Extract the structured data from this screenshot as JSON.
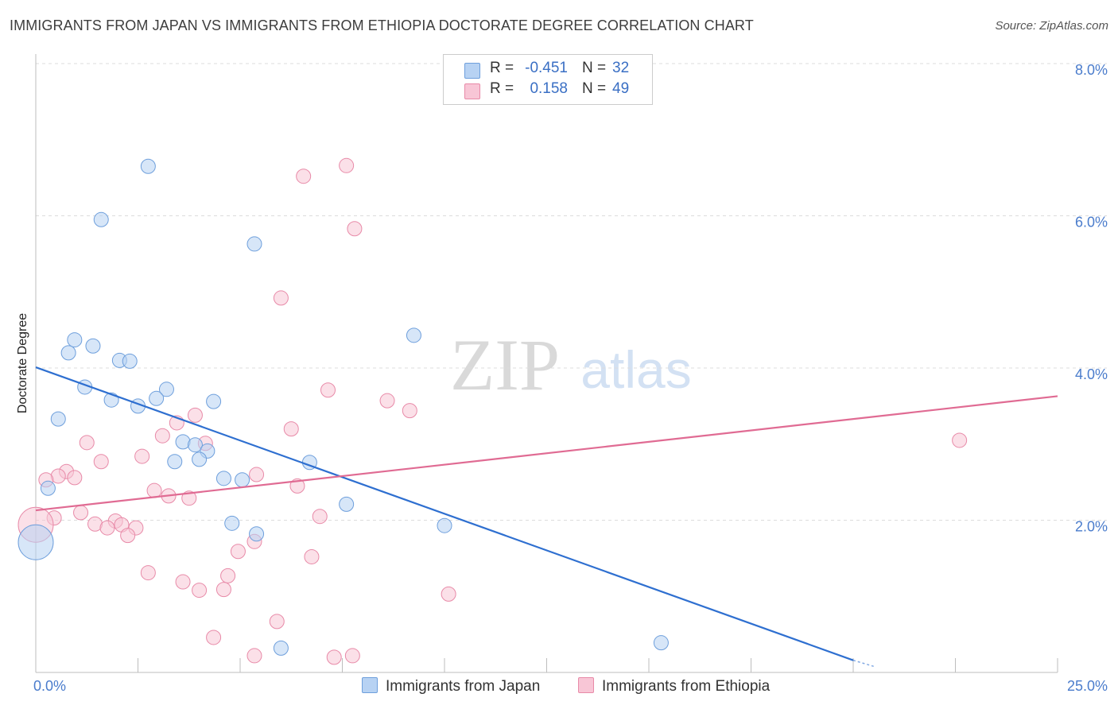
{
  "title": "IMMIGRANTS FROM JAPAN VS IMMIGRANTS FROM ETHIOPIA DOCTORATE DEGREE CORRELATION CHART",
  "source": "Source: ZipAtlas.com",
  "watermark": {
    "zip": "ZIP",
    "atlas": "atlas"
  },
  "legend": {
    "rows": [
      {
        "r_label": "R =",
        "r_value": "-0.451",
        "n_label": "N =",
        "n_value": "32"
      },
      {
        "r_label": "R =",
        "r_value": "0.158",
        "n_label": "N =",
        "n_value": "49"
      }
    ]
  },
  "colors": {
    "japan_fill": "#b7d2f3",
    "japan_stroke": "#6e9fdc",
    "japan_line": "#2e6fd0",
    "ethiopia_fill": "#f8c6d6",
    "ethiopia_stroke": "#e88aa8",
    "ethiopia_line": "#e06b93",
    "tick": "#4a7ccc",
    "grid": "#dcdcdc"
  },
  "chart_data": {
    "type": "scatter",
    "title": "IMMIGRANTS FROM JAPAN VS IMMIGRANTS FROM ETHIOPIA DOCTORATE DEGREE CORRELATION CHART",
    "xlabel": "",
    "ylabel": "Doctorate Degree",
    "xlim": [
      0,
      25
    ],
    "ylim": [
      0,
      8
    ],
    "y_ticks": [
      {
        "v": 2,
        "label": "2.0%"
      },
      {
        "v": 4,
        "label": "4.0%"
      },
      {
        "v": 6,
        "label": "6.0%"
      },
      {
        "v": 8,
        "label": "8.0%"
      }
    ],
    "x_tick_labels": [
      {
        "v": 0,
        "label": "0.0%"
      },
      {
        "v": 25,
        "label": "25.0%"
      }
    ],
    "x_minor_ticks": [
      2.5,
      5,
      7.5,
      10,
      12.5,
      15,
      17.5,
      20,
      22.5,
      25
    ],
    "grid": true,
    "legend_position": "top-center",
    "series": [
      {
        "name": "Immigrants from Japan",
        "r": -0.451,
        "n": 32,
        "trend": {
          "x": [
            0,
            20
          ],
          "y": [
            4.01,
            0.16
          ],
          "dash_to": [
            20.5,
            0.08
          ]
        },
        "points": [
          {
            "x": 2.75,
            "y": 6.65
          },
          {
            "x": 1.6,
            "y": 5.95
          },
          {
            "x": 5.35,
            "y": 5.63
          },
          {
            "x": 9.25,
            "y": 4.43
          },
          {
            "x": 0.95,
            "y": 4.37
          },
          {
            "x": 1.4,
            "y": 4.29
          },
          {
            "x": 0.8,
            "y": 4.2
          },
          {
            "x": 2.05,
            "y": 4.1
          },
          {
            "x": 2.3,
            "y": 4.09
          },
          {
            "x": 1.2,
            "y": 3.75
          },
          {
            "x": 3.2,
            "y": 3.72
          },
          {
            "x": 2.95,
            "y": 3.6
          },
          {
            "x": 1.85,
            "y": 3.58
          },
          {
            "x": 4.35,
            "y": 3.56
          },
          {
            "x": 2.5,
            "y": 3.5
          },
          {
            "x": 0.55,
            "y": 3.33
          },
          {
            "x": 3.6,
            "y": 3.03
          },
          {
            "x": 3.9,
            "y": 2.99
          },
          {
            "x": 4.2,
            "y": 2.91
          },
          {
            "x": 4.0,
            "y": 2.8
          },
          {
            "x": 3.4,
            "y": 2.77
          },
          {
            "x": 6.7,
            "y": 2.76
          },
          {
            "x": 4.6,
            "y": 2.55
          },
          {
            "x": 5.05,
            "y": 2.53
          },
          {
            "x": 0.3,
            "y": 2.42
          },
          {
            "x": 7.6,
            "y": 2.21
          },
          {
            "x": 4.8,
            "y": 1.96
          },
          {
            "x": 10.0,
            "y": 1.93
          },
          {
            "x": 5.4,
            "y": 1.82
          },
          {
            "x": 0.0,
            "y": 1.71,
            "big": true
          },
          {
            "x": 15.3,
            "y": 0.39
          },
          {
            "x": 6.0,
            "y": 0.32
          }
        ]
      },
      {
        "name": "Immigrants from Ethiopia",
        "r": 0.158,
        "n": 49,
        "trend": {
          "x": [
            0,
            25
          ],
          "y": [
            2.13,
            3.63
          ]
        },
        "points": [
          {
            "x": 7.6,
            "y": 6.66
          },
          {
            "x": 6.55,
            "y": 6.52
          },
          {
            "x": 7.8,
            "y": 5.83
          },
          {
            "x": 6.0,
            "y": 4.92
          },
          {
            "x": 7.15,
            "y": 3.71
          },
          {
            "x": 8.6,
            "y": 3.57
          },
          {
            "x": 9.15,
            "y": 3.44
          },
          {
            "x": 3.9,
            "y": 3.38
          },
          {
            "x": 3.45,
            "y": 3.28
          },
          {
            "x": 6.25,
            "y": 3.2
          },
          {
            "x": 3.1,
            "y": 3.11
          },
          {
            "x": 22.6,
            "y": 3.05
          },
          {
            "x": 1.25,
            "y": 3.02
          },
          {
            "x": 4.15,
            "y": 3.01
          },
          {
            "x": 2.6,
            "y": 2.84
          },
          {
            "x": 1.6,
            "y": 2.77
          },
          {
            "x": 0.75,
            "y": 2.64
          },
          {
            "x": 5.4,
            "y": 2.6
          },
          {
            "x": 0.55,
            "y": 2.58
          },
          {
            "x": 0.95,
            "y": 2.56
          },
          {
            "x": 0.25,
            "y": 2.53
          },
          {
            "x": 6.4,
            "y": 2.45
          },
          {
            "x": 2.9,
            "y": 2.39
          },
          {
            "x": 3.25,
            "y": 2.32
          },
          {
            "x": 3.75,
            "y": 2.29
          },
          {
            "x": 1.1,
            "y": 2.1
          },
          {
            "x": 6.95,
            "y": 2.05
          },
          {
            "x": 0.45,
            "y": 2.03
          },
          {
            "x": 1.95,
            "y": 1.99
          },
          {
            "x": 1.45,
            "y": 1.95
          },
          {
            "x": 2.1,
            "y": 1.94
          },
          {
            "x": 0.0,
            "y": 1.94,
            "big": true
          },
          {
            "x": 1.75,
            "y": 1.9
          },
          {
            "x": 2.45,
            "y": 1.9
          },
          {
            "x": 2.25,
            "y": 1.8
          },
          {
            "x": 5.35,
            "y": 1.72
          },
          {
            "x": 4.95,
            "y": 1.59
          },
          {
            "x": 6.75,
            "y": 1.52
          },
          {
            "x": 2.75,
            "y": 1.31
          },
          {
            "x": 4.7,
            "y": 1.27
          },
          {
            "x": 3.6,
            "y": 1.19
          },
          {
            "x": 4.6,
            "y": 1.09
          },
          {
            "x": 4.0,
            "y": 1.08
          },
          {
            "x": 10.1,
            "y": 1.03
          },
          {
            "x": 5.9,
            "y": 0.67
          },
          {
            "x": 4.35,
            "y": 0.46
          },
          {
            "x": 5.35,
            "y": 0.22
          },
          {
            "x": 7.75,
            "y": 0.22
          },
          {
            "x": 7.3,
            "y": 0.2
          }
        ]
      }
    ]
  }
}
